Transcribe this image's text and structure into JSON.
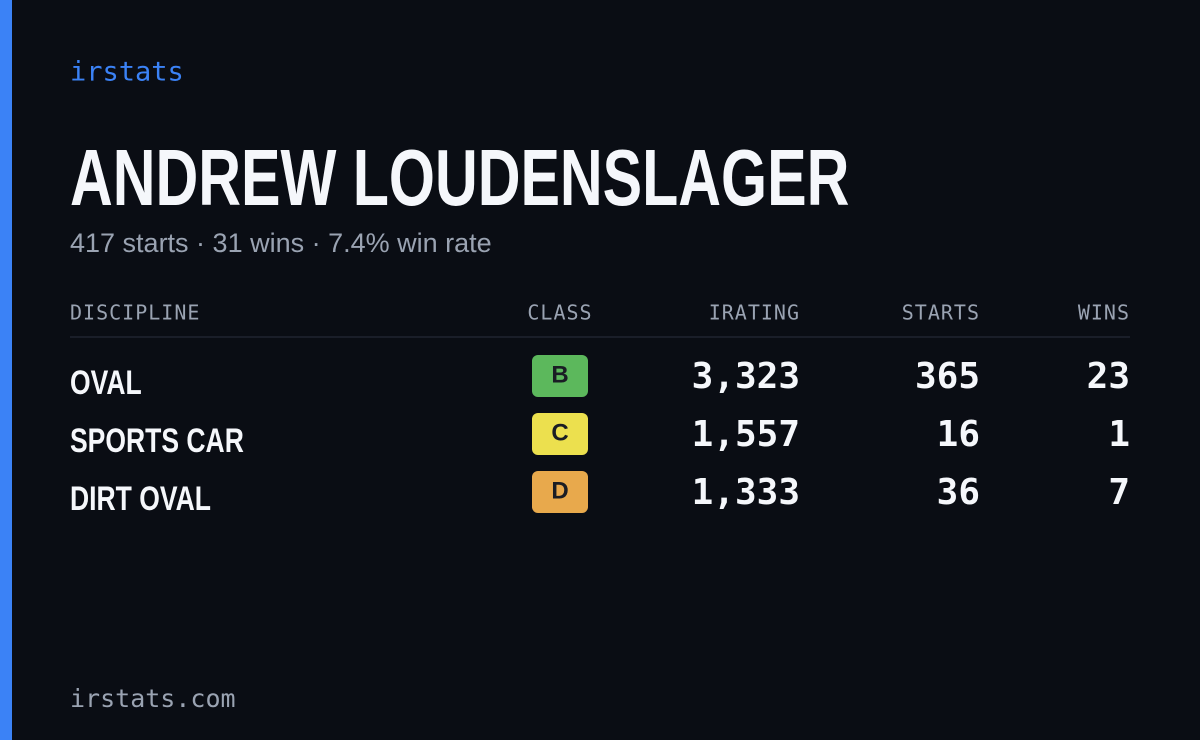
{
  "brand": "irstats",
  "header": {
    "name": "ANDREW LOUDENSLAGER",
    "summary": "417 starts · 31 wins · 7.4% win rate"
  },
  "table": {
    "columns": [
      "DISCIPLINE",
      "CLASS",
      "IRATING",
      "STARTS",
      "WINS"
    ],
    "rows": [
      {
        "discipline": "OVAL",
        "class": "B",
        "class_color": "#5cb85c",
        "irating": "3,323",
        "starts": "365",
        "wins": "23"
      },
      {
        "discipline": "SPORTS CAR",
        "class": "C",
        "class_color": "#ece04e",
        "irating": "1,557",
        "starts": "16",
        "wins": "1"
      },
      {
        "discipline": "DIRT OVAL",
        "class": "D",
        "class_color": "#e8a94c",
        "irating": "1,333",
        "starts": "36",
        "wins": "7"
      }
    ]
  },
  "footer": "irstats.com"
}
